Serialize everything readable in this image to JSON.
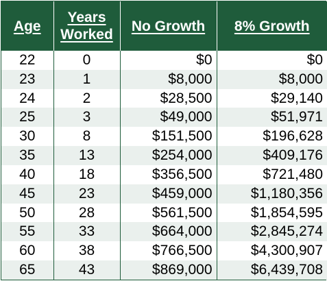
{
  "table": {
    "headers": {
      "age": "Age",
      "years_worked": "Years Worked",
      "years_worked_line1": "Years",
      "years_worked_line2": "Worked",
      "no_growth": "No Growth",
      "growth_8": "8% Growth"
    },
    "rows": [
      {
        "age": "22",
        "years": "0",
        "no_growth": "$0",
        "growth_8": "$0"
      },
      {
        "age": "23",
        "years": "1",
        "no_growth": "$8,000",
        "growth_8": "$8,000"
      },
      {
        "age": "24",
        "years": "2",
        "no_growth": "$28,500",
        "growth_8": "$29,140"
      },
      {
        "age": "25",
        "years": "3",
        "no_growth": "$49,000",
        "growth_8": "$51,971"
      },
      {
        "age": "30",
        "years": "8",
        "no_growth": "$151,500",
        "growth_8": "$196,628"
      },
      {
        "age": "35",
        "years": "13",
        "no_growth": "$254,000",
        "growth_8": "$409,176"
      },
      {
        "age": "40",
        "years": "18",
        "no_growth": "$356,500",
        "growth_8": "$721,480"
      },
      {
        "age": "45",
        "years": "23",
        "no_growth": "$459,000",
        "growth_8": "$1,180,356"
      },
      {
        "age": "50",
        "years": "28",
        "no_growth": "$561,500",
        "growth_8": "$1,854,595"
      },
      {
        "age": "55",
        "years": "33",
        "no_growth": "$664,000",
        "growth_8": "$2,845,274"
      },
      {
        "age": "60",
        "years": "38",
        "no_growth": "$766,500",
        "growth_8": "$4,300,907"
      },
      {
        "age": "65",
        "years": "43",
        "no_growth": "$869,000",
        "growth_8": "$6,439,708"
      }
    ]
  },
  "colors": {
    "header_bg": "#1f5c3b",
    "header_text": "#ffffff",
    "stripe": "#eaf0ed"
  }
}
